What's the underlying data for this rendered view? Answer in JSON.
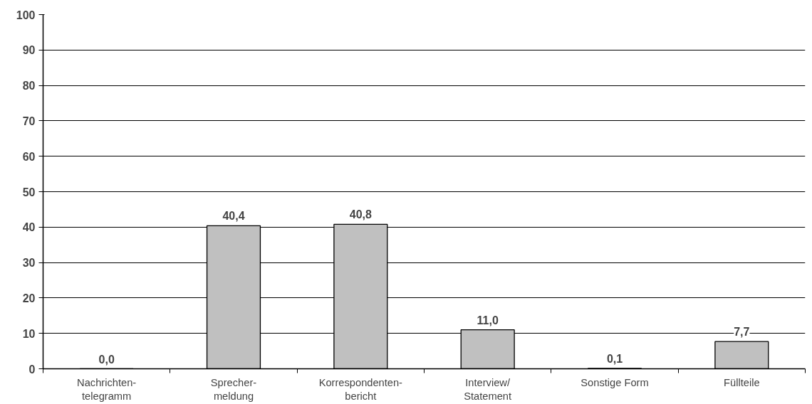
{
  "chart_data": {
    "type": "bar",
    "categories": [
      "Nachrichten-\ntelegramm",
      "Sprecher-\nmeldung",
      "Korrespondenten-\nbericht",
      "Interview/\nStatement",
      "Sonstige Form",
      "Füllteile"
    ],
    "values": [
      0.0,
      40.4,
      40.8,
      11.0,
      0.1,
      7.7
    ],
    "value_labels": [
      "0,0",
      "40,4",
      "40,8",
      "11,0",
      "0,1",
      "7,7"
    ],
    "color": "#c0c0c0",
    "ylim": [
      0,
      100
    ],
    "yticks": [
      0,
      10,
      20,
      30,
      40,
      50,
      60,
      70,
      80,
      90,
      100
    ],
    "grid": "y"
  }
}
